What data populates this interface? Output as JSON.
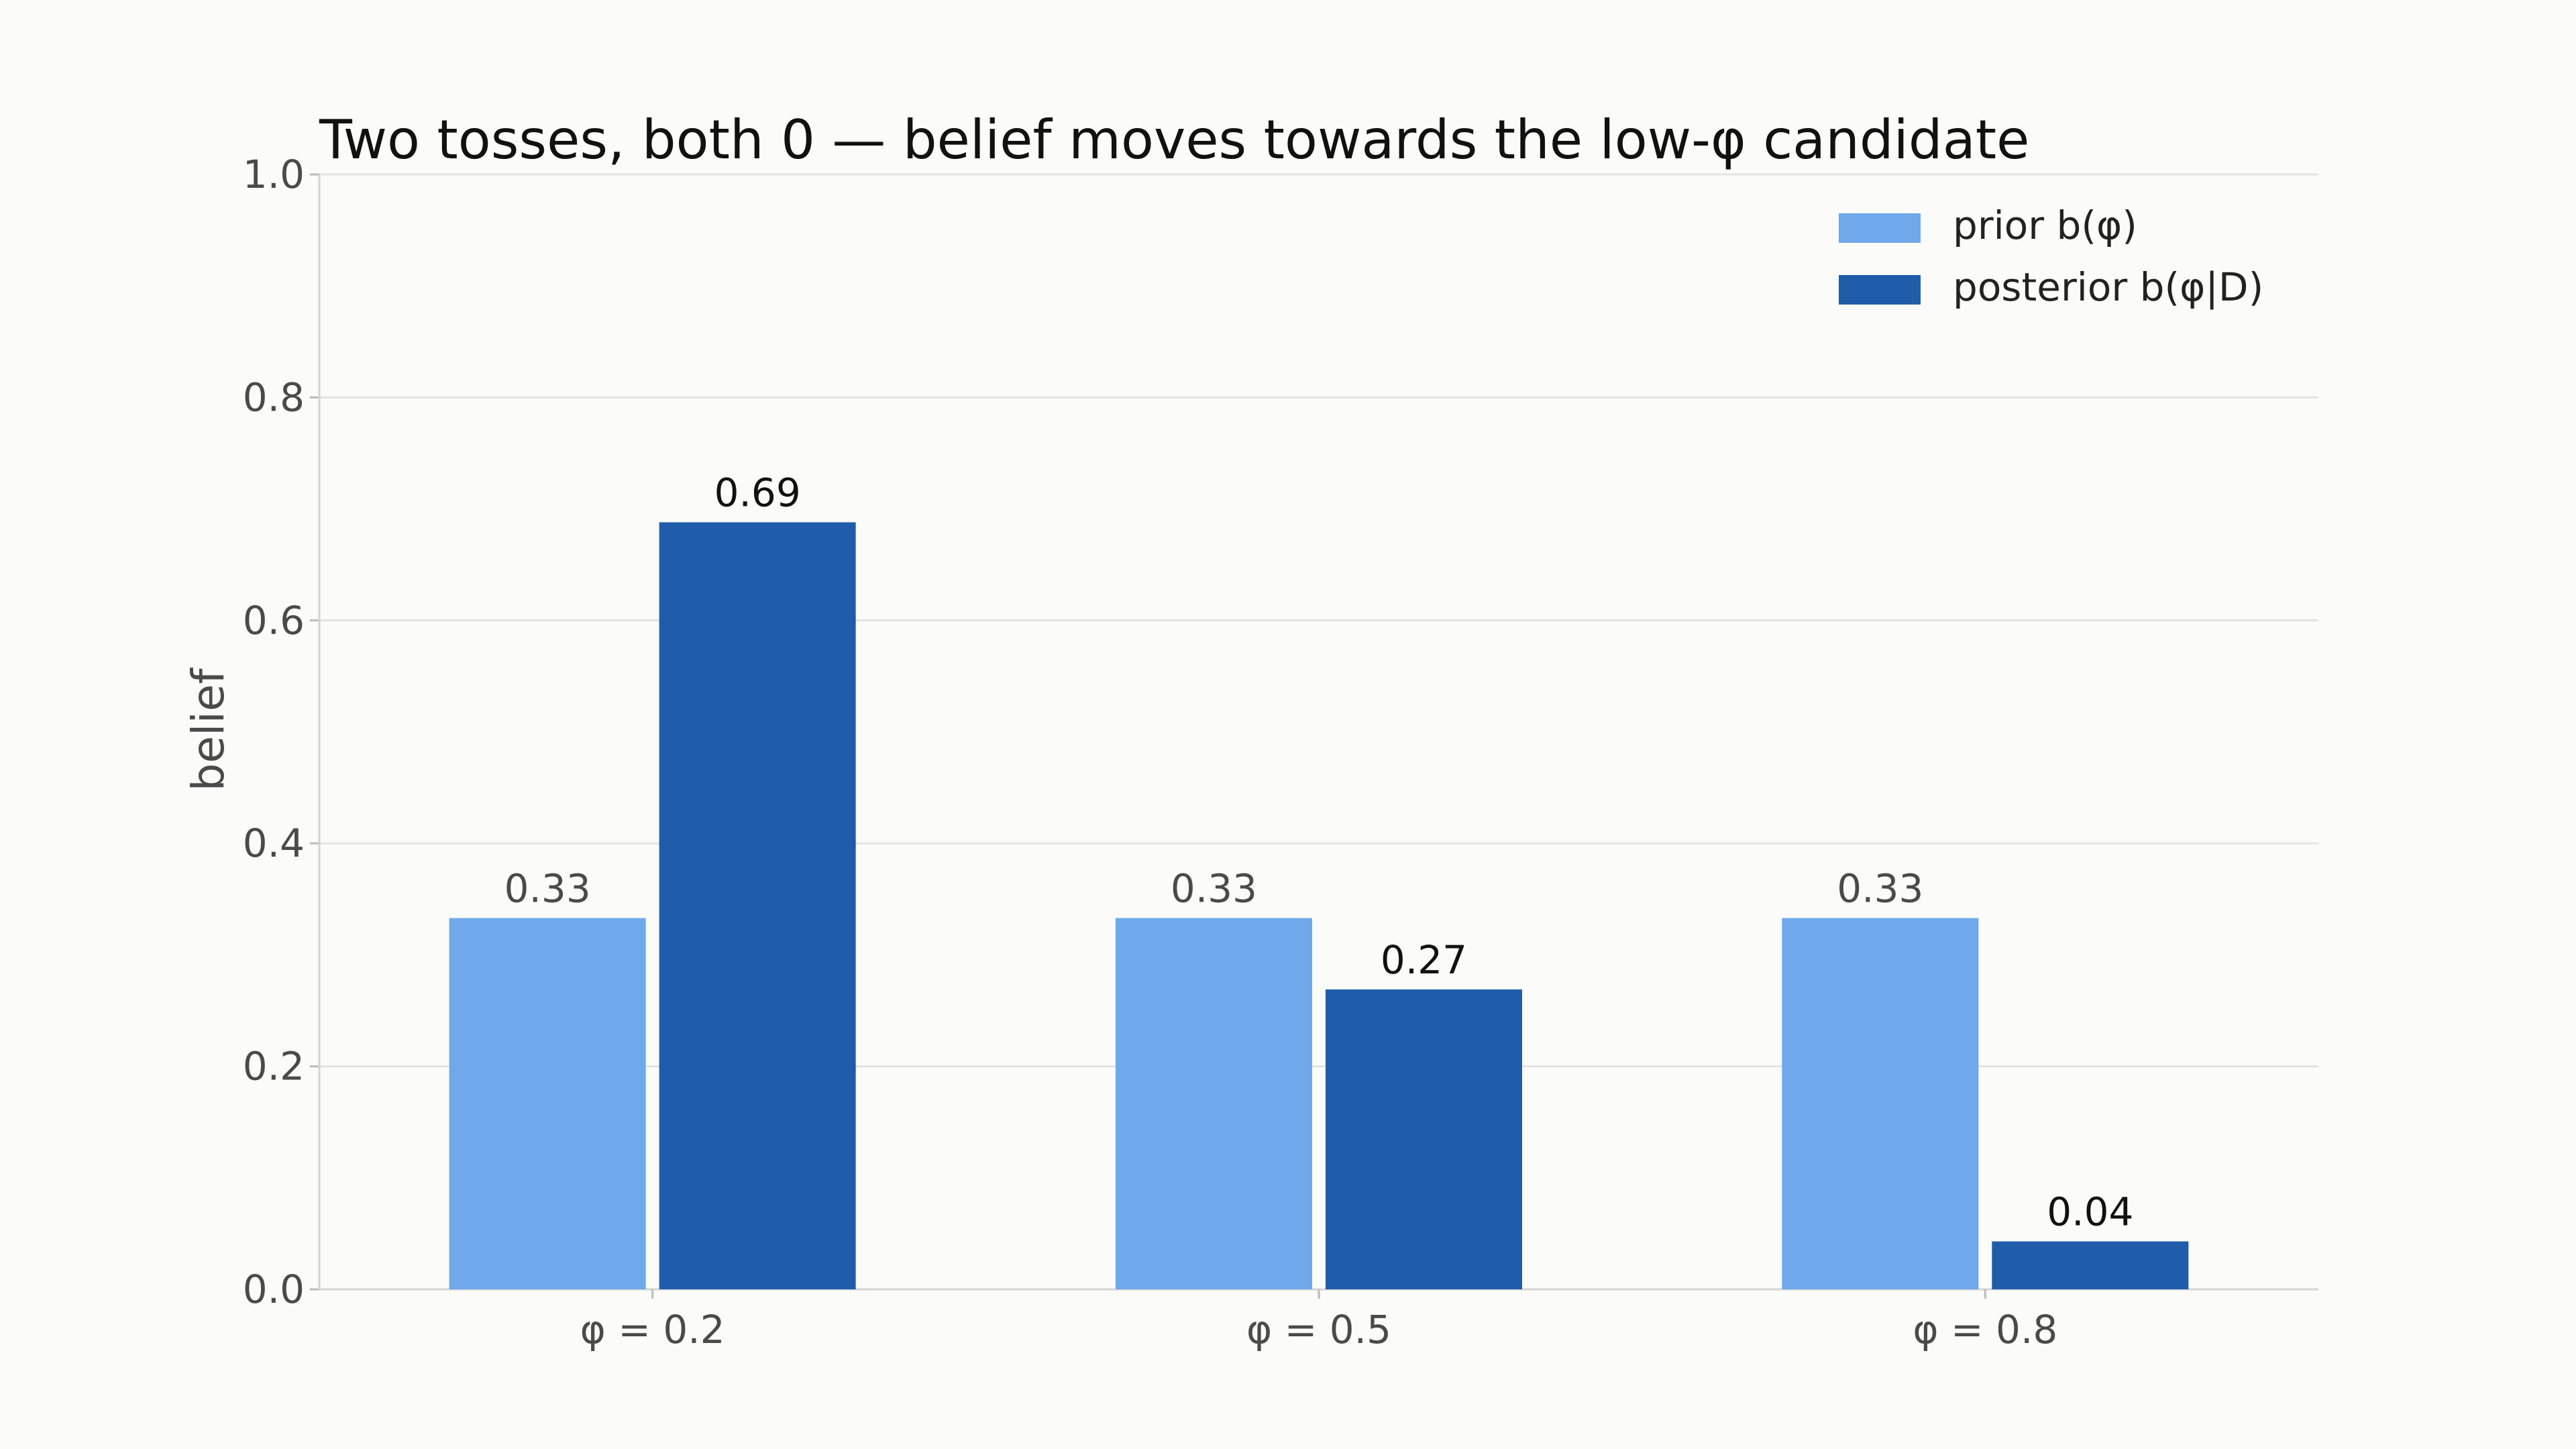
{
  "chart_data": {
    "type": "bar",
    "title": "Two tosses, both 0 — belief moves towards the low-φ candidate",
    "xlabel": "",
    "ylabel": "belief",
    "ylim": [
      0,
      1.0
    ],
    "yticks": [
      "0.0",
      "0.2",
      "0.4",
      "0.6",
      "0.8",
      "1.0"
    ],
    "categories": [
      "φ = 0.2",
      "φ = 0.5",
      "φ = 0.8"
    ],
    "series": [
      {
        "name": "prior b(φ)",
        "values": [
          0.333,
          0.333,
          0.333
        ],
        "labels": [
          "0.33",
          "0.33",
          "0.33"
        ],
        "color": "#6fa8eb"
      },
      {
        "name": "posterior b(φ|D)",
        "values": [
          0.688,
          0.269,
          0.043
        ],
        "labels": [
          "0.69",
          "0.27",
          "0.04"
        ],
        "color": "#1f5daa"
      }
    ],
    "grid": true,
    "legend": "top-right"
  }
}
